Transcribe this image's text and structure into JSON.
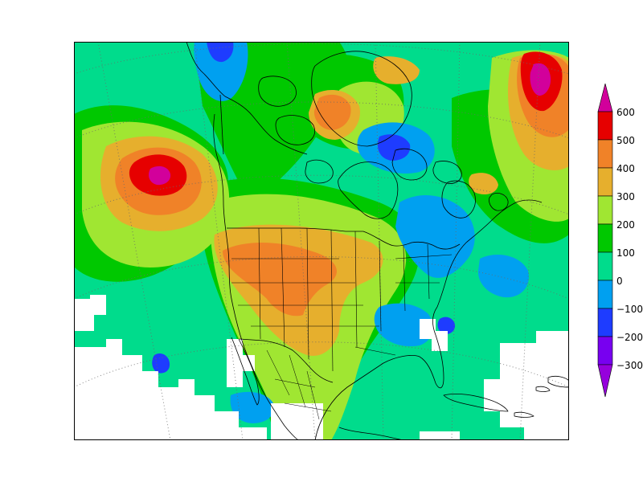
{
  "colors": {
    "bin_-300": "#9600dc",
    "bin_-200": "#7800f0",
    "bin_-100": "#1e3cff",
    "bin_0": "#00a0f0",
    "bin_100": "#00dc8c",
    "bin_200": "#00c800",
    "bin_300": "#a0e632",
    "bin_400": "#e6af2d",
    "bin_500": "#f08228",
    "bin_600": "#e60000",
    "over_600": "#d2009b",
    "missing": "#ffffff",
    "coastline": "#000000"
  },
  "colorbar": {
    "labels": [
      "600",
      "500",
      "400",
      "300",
      "200",
      "100",
      "0",
      "−100",
      "−200",
      "−300"
    ]
  }
}
